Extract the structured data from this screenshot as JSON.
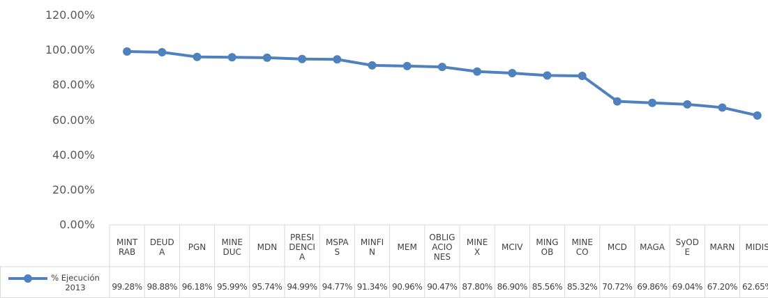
{
  "chart_data": {
    "type": "line",
    "categories": [
      "MINTRAB",
      "DEUDA",
      "PGN",
      "MINEDUC",
      "MDN",
      "PRESIDENCIA",
      "MSPAS",
      "MINFIN",
      "MEM",
      "OBLIGACIONES",
      "MINEX",
      "MCIV",
      "MINGOB",
      "MINECO",
      "MCD",
      "MAGA",
      "SyODE",
      "MARN",
      "MIDIS"
    ],
    "series": [
      {
        "name": "% Ejecución 2013",
        "color": "#4f81bd",
        "values": [
          99.28,
          98.88,
          96.18,
          95.99,
          95.74,
          94.99,
          94.77,
          91.34,
          90.96,
          90.47,
          87.8,
          86.9,
          85.56,
          85.32,
          70.72,
          69.86,
          69.04,
          67.2,
          62.65
        ],
        "value_labels": [
          "99.28%",
          "98.88%",
          "96.18%",
          "95.99%",
          "95.74%",
          "94.99%",
          "94.77%",
          "91.34%",
          "90.96%",
          "90.47%",
          "87.80%",
          "86.90%",
          "85.56%",
          "85.32%",
          "70.72%",
          "69.86%",
          "69.04%",
          "67.20%",
          "62.65%"
        ]
      }
    ],
    "ylim": [
      0,
      120
    ],
    "yticks": [
      {
        "value": 0,
        "label": "0.00%"
      },
      {
        "value": 20,
        "label": "20.00%"
      },
      {
        "value": 40,
        "label": "40.00%"
      },
      {
        "value": 60,
        "label": "60.00%"
      },
      {
        "value": 80,
        "label": "80.00%"
      },
      {
        "value": 100,
        "label": "100.00%"
      },
      {
        "value": 120,
        "label": "120.00%"
      }
    ],
    "data_table": true
  }
}
